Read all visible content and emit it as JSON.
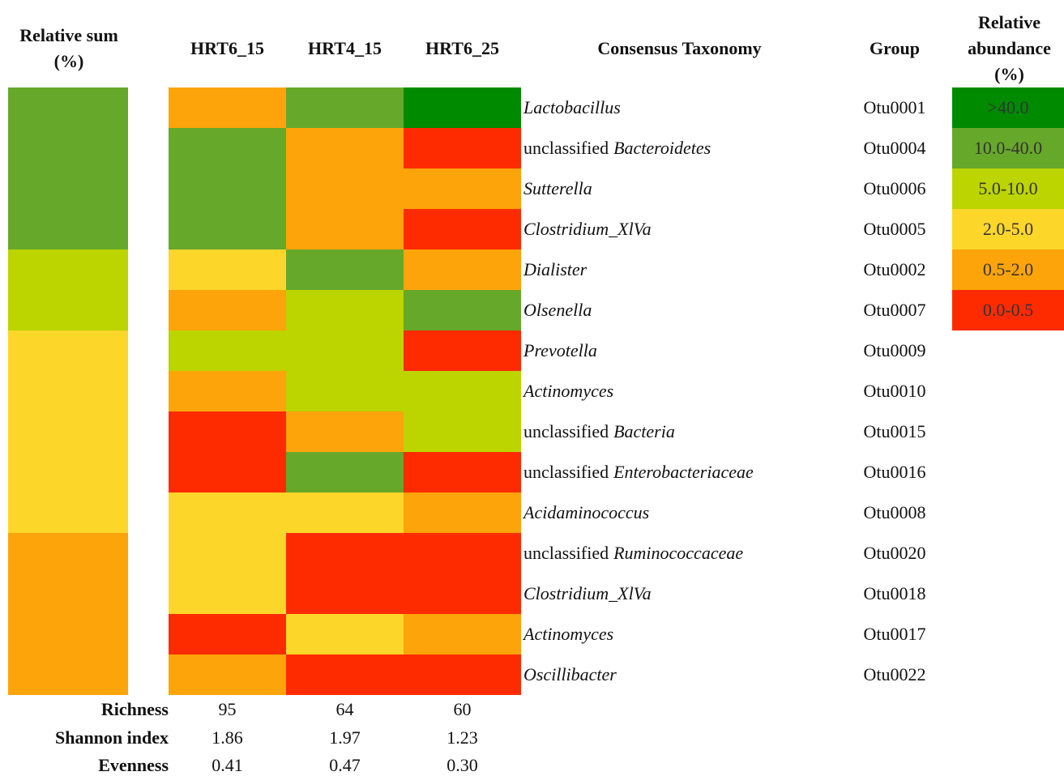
{
  "header": {
    "relative_sum": "Relative sum (%)",
    "columns": [
      "HRT6_15",
      "HRT4_15",
      "HRT6_25"
    ],
    "taxonomy": "Consensus Taxonomy",
    "group": "Group",
    "legend_title": "Relative abundance (%)"
  },
  "legend": [
    {
      "label": ">40.0",
      "color": "#008a00"
    },
    {
      "label": "10.0-40.0",
      "color": "#66a82a"
    },
    {
      "label": "5.0-10.0",
      "color": "#bcd400"
    },
    {
      "label": "2.0-5.0",
      "color": "#fdd62a"
    },
    {
      "label": "0.5-2.0",
      "color": "#fca40a"
    },
    {
      "label": "0.0-0.5",
      "color": "#fe2b00"
    }
  ],
  "rows": [
    {
      "sum": "#66a82a",
      "cells": [
        "#fca40a",
        "#66a82a",
        "#008a00"
      ],
      "taxonomy": "Lactobacillus",
      "group": "Otu0001"
    },
    {
      "sum": "#66a82a",
      "cells": [
        "#66a82a",
        "#fca40a",
        "#fe2b00"
      ],
      "taxonomy": {
        "plain": "unclassified",
        "italic": "Bacteroidetes"
      },
      "group": "Otu0004"
    },
    {
      "sum": "#66a82a",
      "cells": [
        "#66a82a",
        "#fca40a",
        "#fca40a"
      ],
      "taxonomy": "Sutterella",
      "group": "Otu0006"
    },
    {
      "sum": "#66a82a",
      "cells": [
        "#66a82a",
        "#fca40a",
        "#fe2b00"
      ],
      "taxonomy": "Clostridium_XlVa",
      "group": "Otu0005"
    },
    {
      "sum": "#bcd400",
      "cells": [
        "#fdd62a",
        "#66a82a",
        "#fca40a"
      ],
      "taxonomy": "Dialister",
      "group": "Otu0002"
    },
    {
      "sum": "#bcd400",
      "cells": [
        "#fca40a",
        "#bcd400",
        "#66a82a"
      ],
      "taxonomy": "Olsenella",
      "group": "Otu0007"
    },
    {
      "sum": "#fdd62a",
      "cells": [
        "#bcd400",
        "#bcd400",
        "#fe2b00"
      ],
      "taxonomy": "Prevotella",
      "group": "Otu0009"
    },
    {
      "sum": "#fdd62a",
      "cells": [
        "#fca40a",
        "#bcd400",
        "#bcd400"
      ],
      "taxonomy": "Actinomyces",
      "group": "Otu0010"
    },
    {
      "sum": "#fdd62a",
      "cells": [
        "#fe2b00",
        "#fca40a",
        "#bcd400"
      ],
      "taxonomy": {
        "plain": "unclassified",
        "italic": "Bacteria"
      },
      "group": "Otu0015"
    },
    {
      "sum": "#fdd62a",
      "cells": [
        "#fe2b00",
        "#66a82a",
        "#fe2b00"
      ],
      "taxonomy": {
        "plain": "unclassified",
        "italic": "Enterobacteriaceae"
      },
      "group": "Otu0016"
    },
    {
      "sum": "#fdd62a",
      "cells": [
        "#fdd62a",
        "#fdd62a",
        "#fca40a"
      ],
      "taxonomy": "Acidaminococcus",
      "group": "Otu0008"
    },
    {
      "sum": "#fca40a",
      "cells": [
        "#fdd62a",
        "#fe2b00",
        "#fe2b00"
      ],
      "taxonomy": {
        "plain": "unclassified",
        "italic": "Ruminococcaceae"
      },
      "group": "Otu0020"
    },
    {
      "sum": "#fca40a",
      "cells": [
        "#fdd62a",
        "#fe2b00",
        "#fe2b00"
      ],
      "taxonomy": "Clostridium_XlVa",
      "group": "Otu0018"
    },
    {
      "sum": "#fca40a",
      "cells": [
        "#fe2b00",
        "#fdd62a",
        "#fca40a"
      ],
      "taxonomy": "Actinomyces",
      "group": "Otu0017"
    },
    {
      "sum": "#fca40a",
      "cells": [
        "#fca40a",
        "#fe2b00",
        "#fe2b00"
      ],
      "taxonomy": "Oscillibacter",
      "group": "Otu0022"
    }
  ],
  "stats": [
    {
      "label": "Richness",
      "values": [
        "95",
        "64",
        "60"
      ]
    },
    {
      "label": "Shannon index",
      "values": [
        "1.86",
        "1.97",
        "1.23"
      ]
    },
    {
      "label": "Evenness",
      "values": [
        "0.41",
        "0.47",
        "0.30"
      ]
    }
  ]
}
